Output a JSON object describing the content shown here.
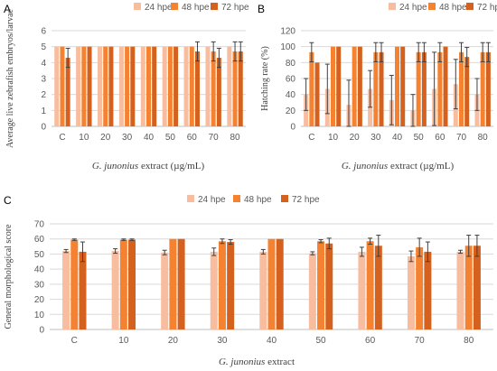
{
  "chart_data": [
    {
      "type": "bar",
      "panel_label": "A",
      "categories": [
        "C",
        "10",
        "20",
        "30",
        "40",
        "50",
        "60",
        "70",
        "80"
      ],
      "ylabel": "Average live zebrafish embryos/larvae",
      "xlabel_italic": "G. junonius",
      "xlabel_rest": " extract (µg/mL)",
      "ylim": [
        0,
        6
      ],
      "yticks": [
        0,
        1,
        2,
        3,
        4,
        5,
        6
      ],
      "grid": true,
      "legend_position": "top",
      "series": [
        {
          "name": "24 hpe",
          "values": [
            5,
            5,
            5,
            5,
            5,
            5,
            5,
            5,
            5
          ],
          "errors": [
            0,
            0,
            0,
            0,
            0,
            0,
            0,
            0,
            0
          ]
        },
        {
          "name": "48 hpe",
          "values": [
            5,
            5,
            5,
            5,
            5,
            5,
            5,
            4.7,
            4.7
          ],
          "errors": [
            0,
            0,
            0,
            0,
            0,
            0,
            0,
            0.6,
            0.6
          ]
        },
        {
          "name": "72 hpe",
          "values": [
            4.3,
            5,
            5,
            5,
            5,
            5,
            4.7,
            4.3,
            4.7
          ],
          "errors": [
            0.6,
            0,
            0,
            0,
            0,
            0,
            0.6,
            0.6,
            0.6
          ]
        }
      ]
    },
    {
      "type": "bar",
      "panel_label": "B",
      "categories": [
        "C",
        "10",
        "20",
        "30",
        "40",
        "50",
        "60",
        "70",
        "80"
      ],
      "ylabel": "Hatching rate (%)",
      "xlabel_italic": "G. junonius",
      "xlabel_rest": " extract (µg/mL)",
      "ylim": [
        0,
        120
      ],
      "yticks": [
        0,
        20,
        40,
        60,
        80,
        100,
        120
      ],
      "grid": true,
      "legend_position": "top",
      "series": [
        {
          "name": "24 hpe",
          "values": [
            40,
            47,
            27,
            47,
            33,
            20,
            47,
            53,
            40
          ],
          "errors": [
            20,
            31,
            31,
            23,
            31,
            20,
            46,
            31,
            20
          ]
        },
        {
          "name": "48 hpe",
          "values": [
            93,
            100,
            100,
            93,
            100,
            93,
            93,
            93,
            93
          ],
          "errors": [
            12,
            0,
            0,
            12,
            0,
            12,
            12,
            12,
            12
          ]
        },
        {
          "name": "72 hpe",
          "values": [
            80,
            100,
            100,
            93,
            100,
            93,
            100,
            87,
            93
          ],
          "errors": [
            0,
            0,
            0,
            12,
            0,
            12,
            0,
            12,
            12
          ]
        }
      ]
    },
    {
      "type": "bar",
      "panel_label": "C",
      "categories": [
        "C",
        "10",
        "20",
        "30",
        "40",
        "50",
        "60",
        "70",
        "80"
      ],
      "ylabel": "General morphological score",
      "xlabel_italic": "G. junonius",
      "xlabel_rest": " extract",
      "ylim": [
        0,
        70
      ],
      "yticks": [
        0,
        10,
        20,
        30,
        40,
        50,
        60,
        70
      ],
      "grid": true,
      "legend_position": "top",
      "series": [
        {
          "name": "24 hpe",
          "values": [
            52,
            52,
            51,
            51.5,
            51.5,
            50.5,
            51.5,
            48.5,
            51.5
          ],
          "errors": [
            1,
            1.5,
            1.5,
            2.5,
            1.5,
            1,
            3,
            3.5,
            1
          ]
        },
        {
          "name": "48 hpe",
          "values": [
            59.5,
            59.5,
            60,
            58.5,
            60,
            58.5,
            58.5,
            54.5,
            55.5
          ],
          "errors": [
            0.5,
            0.5,
            0,
            1.5,
            0,
            1,
            2,
            6,
            7
          ]
        },
        {
          "name": "72 hpe",
          "values": [
            51.5,
            59.5,
            60,
            58,
            60,
            57,
            55.5,
            51.5,
            55.5
          ],
          "errors": [
            6.5,
            0.5,
            0,
            1.5,
            0,
            3.5,
            7,
            6.5,
            7
          ]
        }
      ]
    }
  ],
  "colors": {
    "24 hpe": "#f8bc9e",
    "48 hpe": "#f58231",
    "72 hpe": "#d5611e"
  }
}
